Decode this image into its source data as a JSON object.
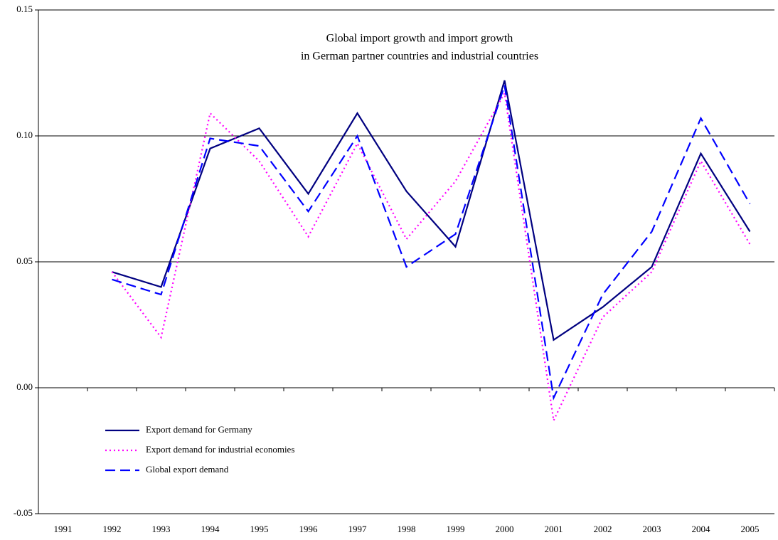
{
  "chart_data": {
    "type": "line",
    "title": [
      "Global import growth and import growth",
      "in German partner countries and industrial countries"
    ],
    "categories": [
      "1991",
      "1992",
      "1993",
      "1994",
      "1995",
      "1996",
      "1997",
      "1998",
      "1999",
      "2000",
      "2001",
      "2002",
      "2003",
      "2004",
      "2005"
    ],
    "series": [
      {
        "name": "Export demand for Germany",
        "color": "#000080",
        "dash": "solid",
        "values": [
          null,
          0.046,
          0.04,
          0.095,
          0.103,
          0.077,
          0.109,
          0.078,
          0.056,
          0.122,
          0.019,
          0.032,
          0.048,
          0.093,
          0.062
        ]
      },
      {
        "name": "Export demand for industrial economies",
        "color": "#ff00ff",
        "dash": "dotted",
        "values": [
          null,
          0.046,
          0.02,
          0.109,
          0.09,
          0.06,
          0.097,
          0.059,
          0.082,
          0.117,
          -0.013,
          0.028,
          0.046,
          0.09,
          0.057
        ]
      },
      {
        "name": "Global export demand",
        "color": "#0000ff",
        "dash": "dashed",
        "values": [
          null,
          0.043,
          0.037,
          0.099,
          0.096,
          0.07,
          0.1,
          0.048,
          0.061,
          0.12,
          -0.004,
          0.037,
          0.062,
          0.107,
          0.073
        ]
      }
    ],
    "ylim": [
      -0.05,
      0.15
    ],
    "yticks": [
      {
        "value": -0.05,
        "label": "-0.05"
      },
      {
        "value": 0,
        "label": "0.00"
      },
      {
        "value": 0.05,
        "label": "0.05"
      },
      {
        "value": 0.1,
        "label": "0.10"
      },
      {
        "value": 0.15,
        "label": "0.15"
      }
    ],
    "grid": true,
    "legend": "lower left"
  }
}
